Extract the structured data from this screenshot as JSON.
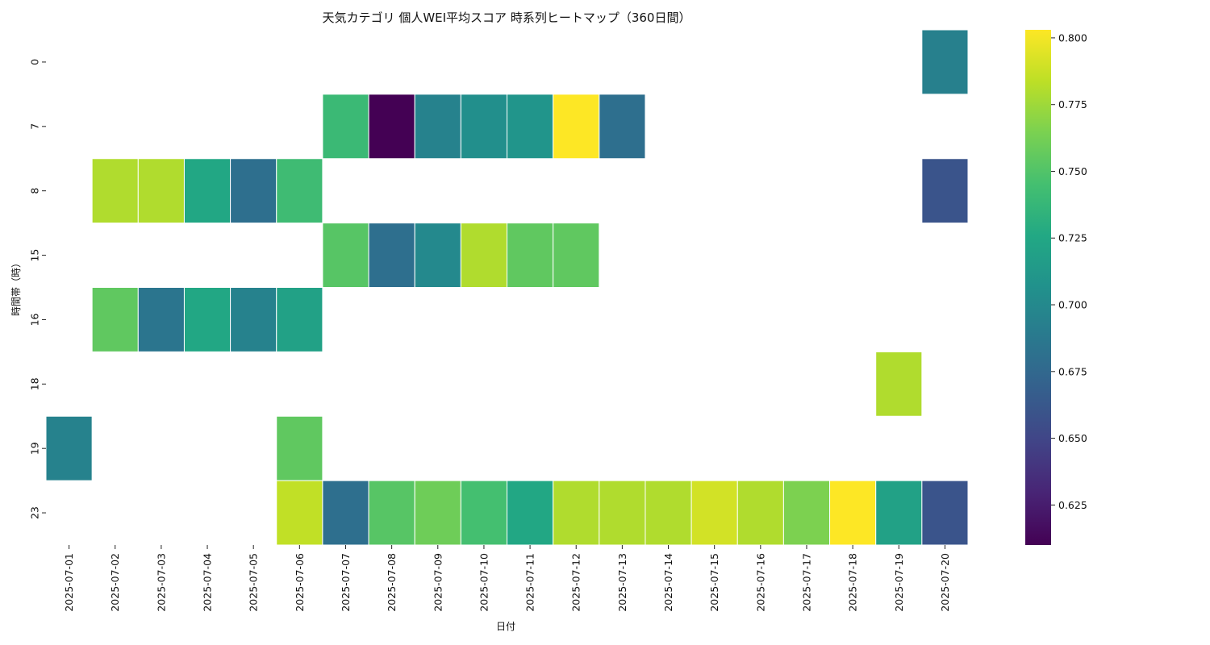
{
  "chart_data": {
    "type": "heatmap",
    "title": "天気カテゴリ 個人WEI平均スコア 時系列ヒートマップ（360日間）",
    "xlabel": "日付",
    "ylabel": "時間帯（時）",
    "x_categories": [
      "2025-07-01",
      "2025-07-02",
      "2025-07-03",
      "2025-07-04",
      "2025-07-05",
      "2025-07-06",
      "2025-07-07",
      "2025-07-08",
      "2025-07-09",
      "2025-07-10",
      "2025-07-11",
      "2025-07-12",
      "2025-07-13",
      "2025-07-14",
      "2025-07-15",
      "2025-07-16",
      "2025-07-17",
      "2025-07-18",
      "2025-07-19",
      "2025-07-20"
    ],
    "y_categories": [
      "0",
      "7",
      "8",
      "15",
      "16",
      "18",
      "19",
      "23"
    ],
    "values": [
      [
        null,
        null,
        null,
        null,
        null,
        null,
        null,
        null,
        null,
        null,
        null,
        null,
        null,
        null,
        null,
        null,
        null,
        null,
        null,
        0.693
      ],
      [
        null,
        null,
        null,
        null,
        null,
        null,
        0.74,
        0.61,
        0.695,
        0.705,
        0.71,
        0.803,
        0.68,
        null,
        null,
        null,
        null,
        null,
        null,
        null
      ],
      [
        null,
        0.78,
        0.78,
        0.725,
        0.68,
        0.742,
        null,
        null,
        null,
        null,
        null,
        null,
        null,
        null,
        null,
        null,
        null,
        null,
        null,
        0.66
      ],
      [
        null,
        null,
        null,
        null,
        null,
        null,
        0.752,
        0.68,
        0.7,
        0.78,
        0.755,
        0.755,
        null,
        null,
        null,
        null,
        null,
        null,
        null,
        null
      ],
      [
        null,
        0.755,
        0.685,
        0.725,
        0.695,
        0.72,
        null,
        null,
        null,
        null,
        null,
        null,
        null,
        null,
        null,
        null,
        null,
        null,
        null,
        null
      ],
      [
        null,
        null,
        null,
        null,
        null,
        null,
        null,
        null,
        null,
        null,
        null,
        null,
        null,
        null,
        null,
        null,
        null,
        null,
        0.78,
        null
      ],
      [
        0.695,
        null,
        null,
        null,
        null,
        0.755,
        null,
        null,
        null,
        null,
        null,
        null,
        null,
        null,
        null,
        null,
        null,
        null,
        null,
        null
      ],
      [
        null,
        null,
        null,
        null,
        null,
        0.785,
        0.68,
        0.752,
        0.76,
        0.745,
        0.725,
        0.78,
        0.78,
        0.78,
        0.79,
        0.78,
        0.765,
        0.803,
        0.72,
        0.66
      ]
    ],
    "colorbar": {
      "colormap": "viridis",
      "vmin": 0.61,
      "vmax": 0.803,
      "ticks": [
        0.625,
        0.65,
        0.675,
        0.7,
        0.725,
        0.75,
        0.775,
        0.8
      ],
      "tick_labels": [
        "0.625",
        "0.650",
        "0.675",
        "0.700",
        "0.725",
        "0.750",
        "0.775",
        "0.800"
      ]
    },
    "grid": false,
    "legend": "colorbar-right"
  }
}
